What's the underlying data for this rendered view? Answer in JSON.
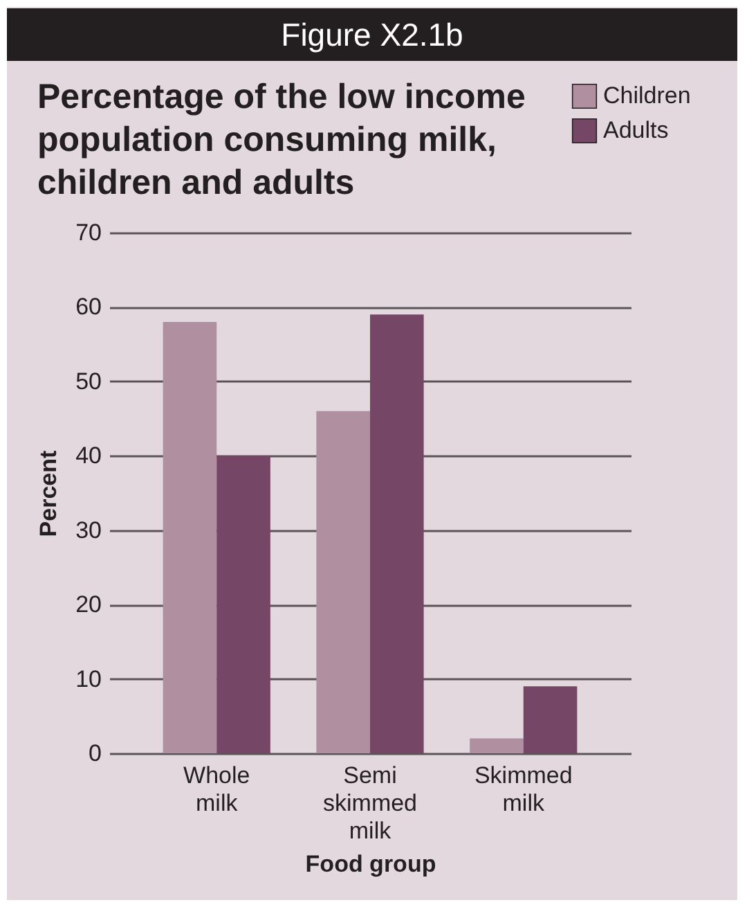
{
  "chart_data": {
    "type": "bar",
    "title": "Figure X2.1b",
    "subtitle": "Percentage of the low income population consuming milk, children and adults",
    "xlabel": "Food group",
    "ylabel": "Percent",
    "categories": [
      "Whole milk",
      "Semi skimmed milk",
      "Skimmed milk"
    ],
    "series": [
      {
        "name": "Children",
        "color": "#b08fa0",
        "values": [
          58,
          46,
          2
        ]
      },
      {
        "name": "Adults",
        "color": "#764667",
        "values": [
          40,
          59,
          9
        ]
      }
    ],
    "ylim": [
      0,
      70
    ],
    "yticks": [
      0,
      10,
      20,
      30,
      40,
      50,
      60,
      70
    ],
    "grid": "y",
    "legend": "top right"
  }
}
